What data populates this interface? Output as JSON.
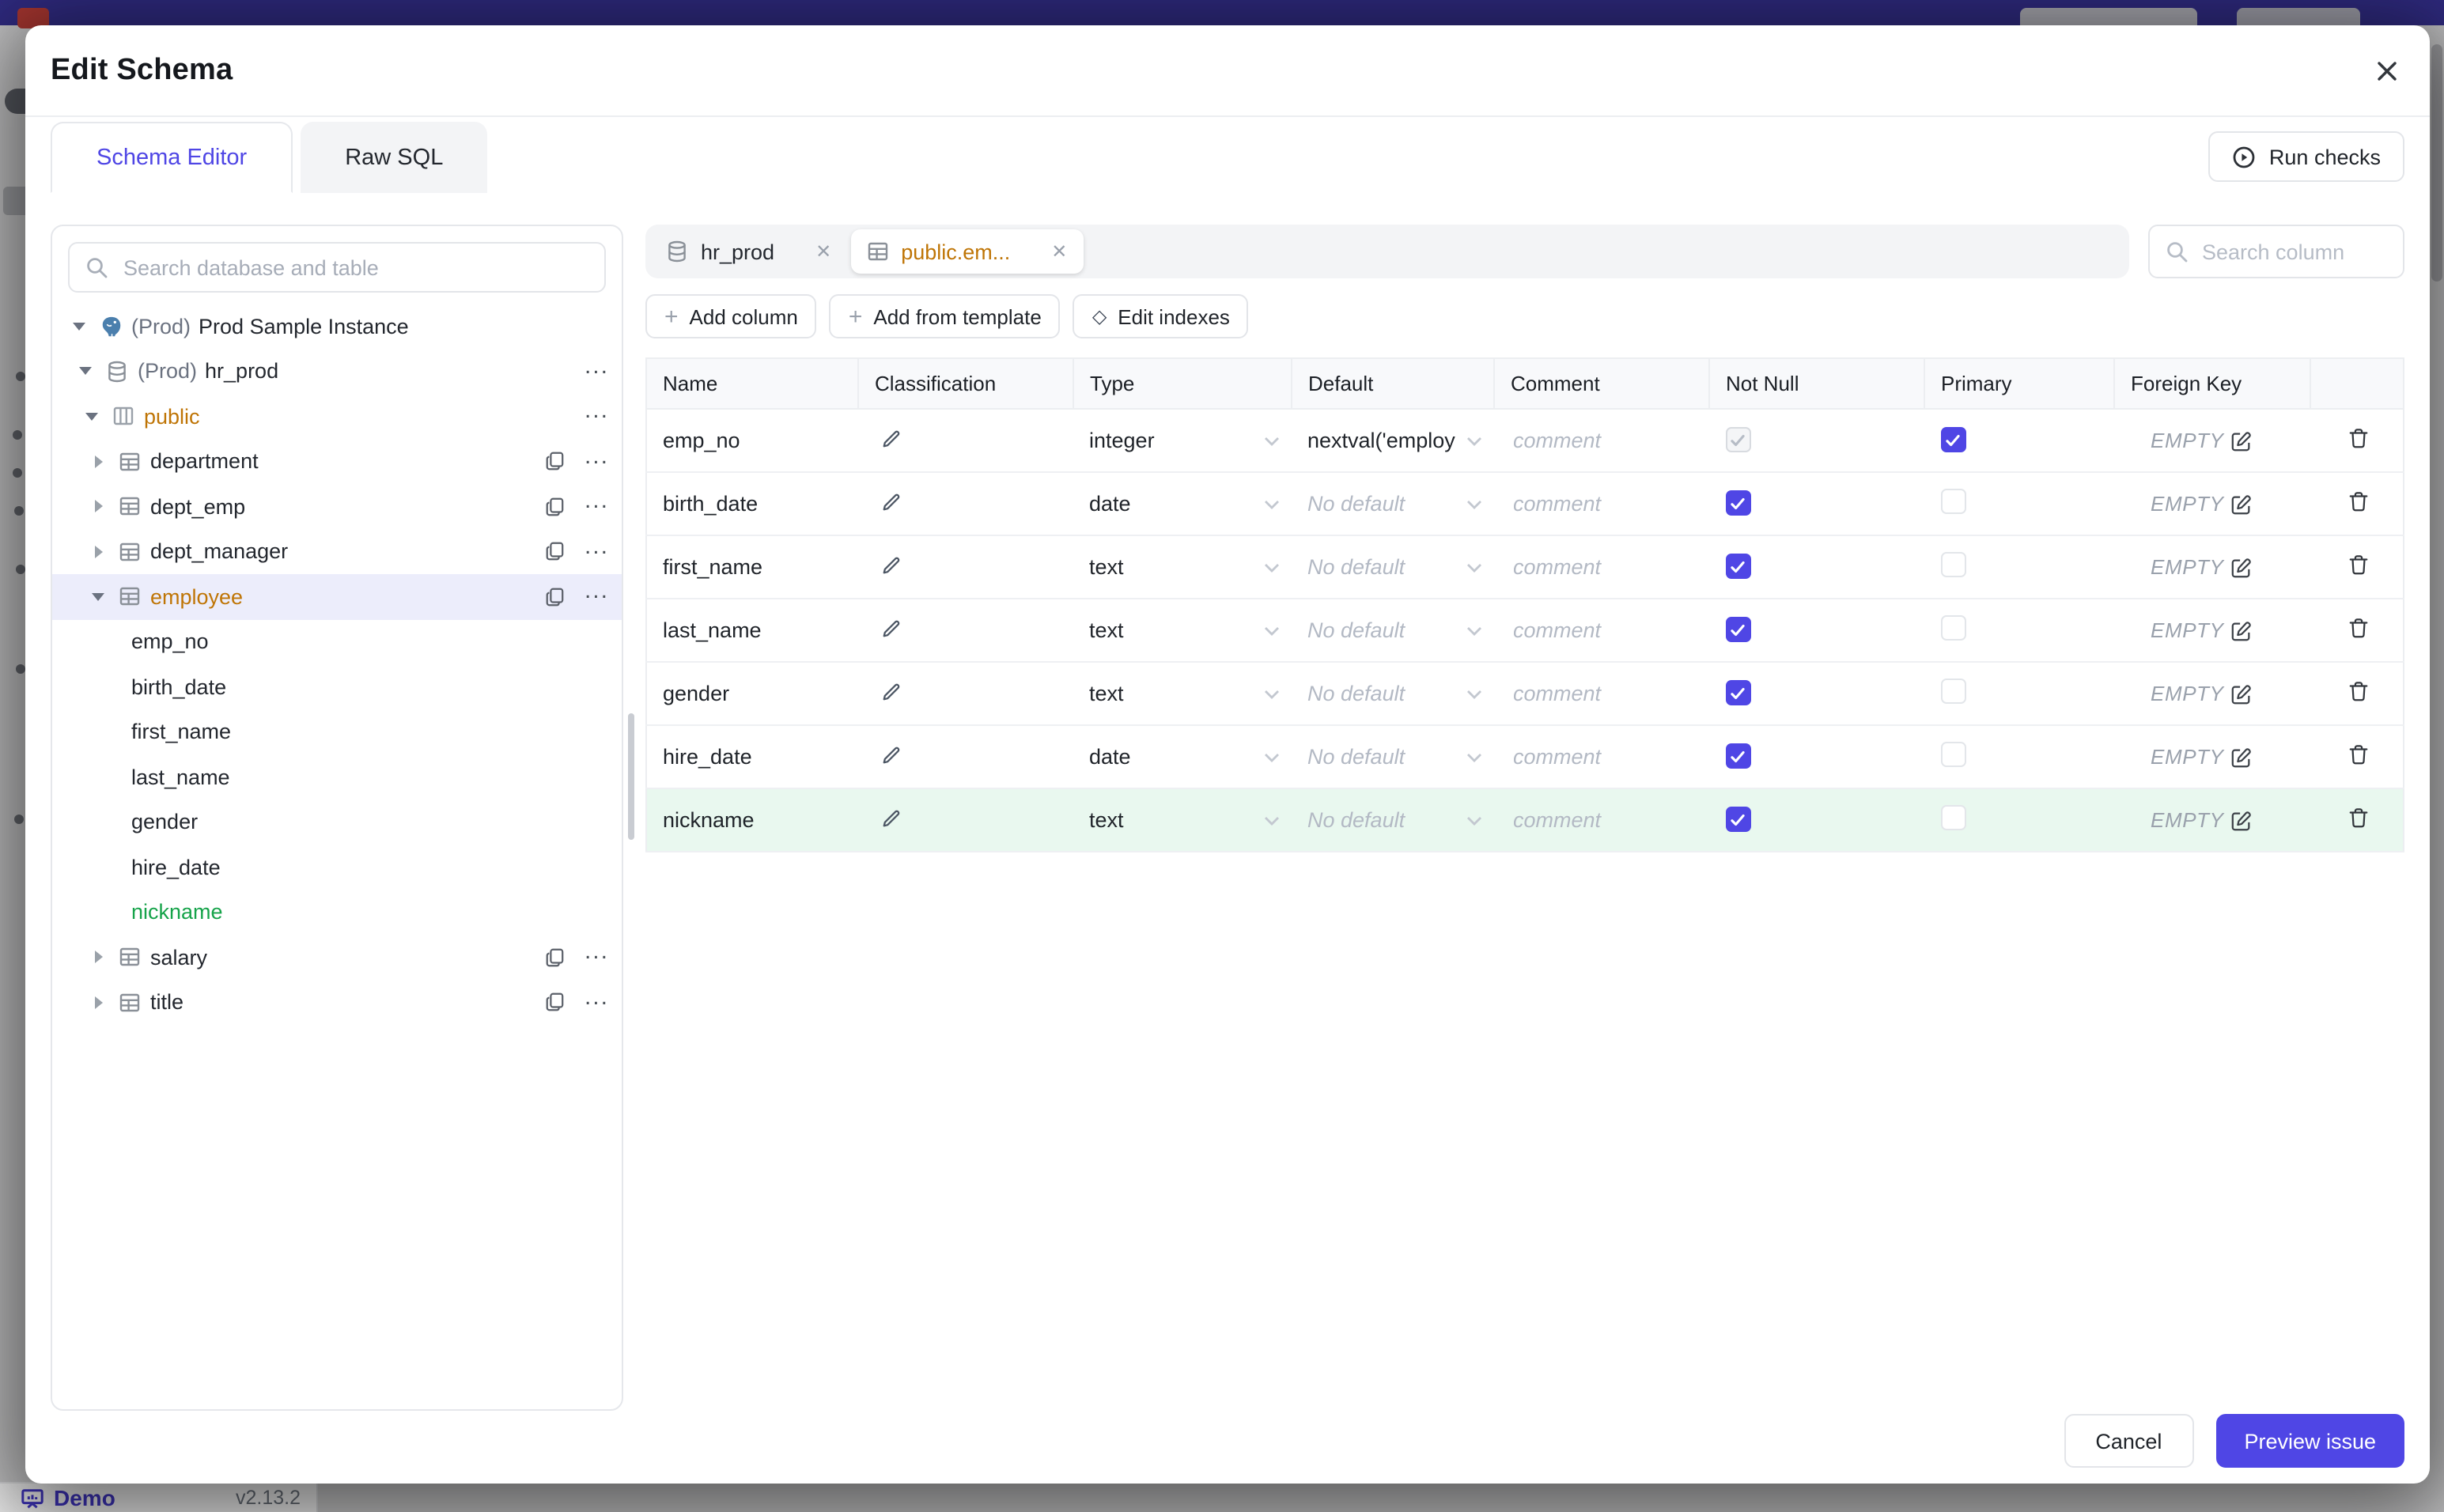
{
  "backdrop": {
    "demo_label": "Demo",
    "version": "v2.13.2"
  },
  "colors": {
    "accent_indigo": "#4f46e5",
    "topbar_indigo": "#3c36a5",
    "schema_amber": "#bf7506",
    "new_item_green": "#16a34a",
    "new_row_bg": "#e9f8ef",
    "selected_tree_bg": "#ecedfb"
  },
  "icons": {
    "close": "x-icon",
    "search": "magnifier-icon",
    "run_checks": "play-circle-icon",
    "add": "plus-icon",
    "edit_indexes": "diamond-icon",
    "classification": "pencil-icon",
    "foreign_key_edit": "pencil-square-icon",
    "delete_row": "trash-icon",
    "tree_copy": "copy-icon",
    "tree_more": "ellipsis-icon"
  },
  "modal": {
    "title": "Edit Schema",
    "tabs": [
      {
        "label": "Schema Editor",
        "active": true
      },
      {
        "label": "Raw SQL",
        "active": false
      }
    ],
    "run_checks_label": "Run checks",
    "sidebar": {
      "search_placeholder": "Search database and table",
      "tree": [
        {
          "depth": 0,
          "caret": "down",
          "icon": "postgres",
          "prefix": "(Prod)",
          "label": "Prod Sample Instance",
          "trailing": []
        },
        {
          "depth": 1,
          "caret": "down",
          "icon": "database",
          "prefix": "(Prod)",
          "label": "hr_prod",
          "trailing": [
            "more"
          ]
        },
        {
          "depth": 2,
          "caret": "down",
          "icon": "schema",
          "label": "public",
          "color": "amber",
          "trailing": [
            "more"
          ]
        },
        {
          "depth": 3,
          "caret": "right",
          "icon": "table",
          "label": "department",
          "trailing": [
            "copy",
            "more"
          ]
        },
        {
          "depth": 3,
          "caret": "right",
          "icon": "table",
          "label": "dept_emp",
          "trailing": [
            "copy",
            "more"
          ]
        },
        {
          "depth": 3,
          "caret": "right",
          "icon": "table",
          "label": "dept_manager",
          "trailing": [
            "copy",
            "more"
          ]
        },
        {
          "depth": 3,
          "caret": "down",
          "icon": "table",
          "label": "employee",
          "color": "amber",
          "selected": true,
          "trailing": [
            "copy",
            "more"
          ]
        },
        {
          "depth": 4,
          "label": "emp_no"
        },
        {
          "depth": 4,
          "label": "birth_date"
        },
        {
          "depth": 4,
          "label": "first_name"
        },
        {
          "depth": 4,
          "label": "last_name"
        },
        {
          "depth": 4,
          "label": "gender"
        },
        {
          "depth": 4,
          "label": "hire_date"
        },
        {
          "depth": 4,
          "label": "nickname",
          "color": "green"
        },
        {
          "depth": 3,
          "caret": "right",
          "icon": "table",
          "label": "salary",
          "trailing": [
            "copy",
            "more"
          ]
        },
        {
          "depth": 3,
          "caret": "right",
          "icon": "table",
          "label": "title",
          "trailing": [
            "copy",
            "more"
          ]
        }
      ]
    },
    "editor": {
      "chips": [
        {
          "label": "hr_prod",
          "icon": "database",
          "active": false
        },
        {
          "label": "public.em...",
          "icon": "table",
          "active": true
        }
      ],
      "column_search_placeholder": "Search column",
      "actions": [
        {
          "icon": "plus",
          "label": "Add column"
        },
        {
          "icon": "plus",
          "label": "Add from template"
        },
        {
          "icon": "diamond",
          "label": "Edit indexes"
        }
      ],
      "table": {
        "headers": [
          "Name",
          "Classification",
          "Type",
          "Default",
          "Comment",
          "Not Null",
          "Primary",
          "Foreign Key",
          ""
        ],
        "foreign_key_empty_label": "EMPTY",
        "comment_placeholder": "comment",
        "rows": [
          {
            "name": "emp_no",
            "type": "integer",
            "default": "nextval('employ",
            "default_muted": false,
            "not_null": "on-disabled",
            "primary": "on",
            "fk": "EMPTY",
            "highlight": null
          },
          {
            "name": "birth_date",
            "type": "date",
            "default": "No default",
            "default_muted": true,
            "not_null": "on",
            "primary": "off",
            "fk": "EMPTY",
            "highlight": null
          },
          {
            "name": "first_name",
            "type": "text",
            "default": "No default",
            "default_muted": true,
            "not_null": "on",
            "primary": "off",
            "fk": "EMPTY",
            "highlight": null
          },
          {
            "name": "last_name",
            "type": "text",
            "default": "No default",
            "default_muted": true,
            "not_null": "on",
            "primary": "off",
            "fk": "EMPTY",
            "highlight": null
          },
          {
            "name": "gender",
            "type": "text",
            "default": "No default",
            "default_muted": true,
            "not_null": "on",
            "primary": "off",
            "fk": "EMPTY",
            "highlight": null
          },
          {
            "name": "hire_date",
            "type": "date",
            "default": "No default",
            "default_muted": true,
            "not_null": "on",
            "primary": "off",
            "fk": "EMPTY",
            "highlight": null
          },
          {
            "name": "nickname",
            "type": "text",
            "default": "No default",
            "default_muted": true,
            "not_null": "on",
            "primary": "off",
            "fk": "EMPTY",
            "highlight": "green"
          }
        ]
      }
    },
    "footer": {
      "cancel_label": "Cancel",
      "primary_label": "Preview issue"
    }
  }
}
